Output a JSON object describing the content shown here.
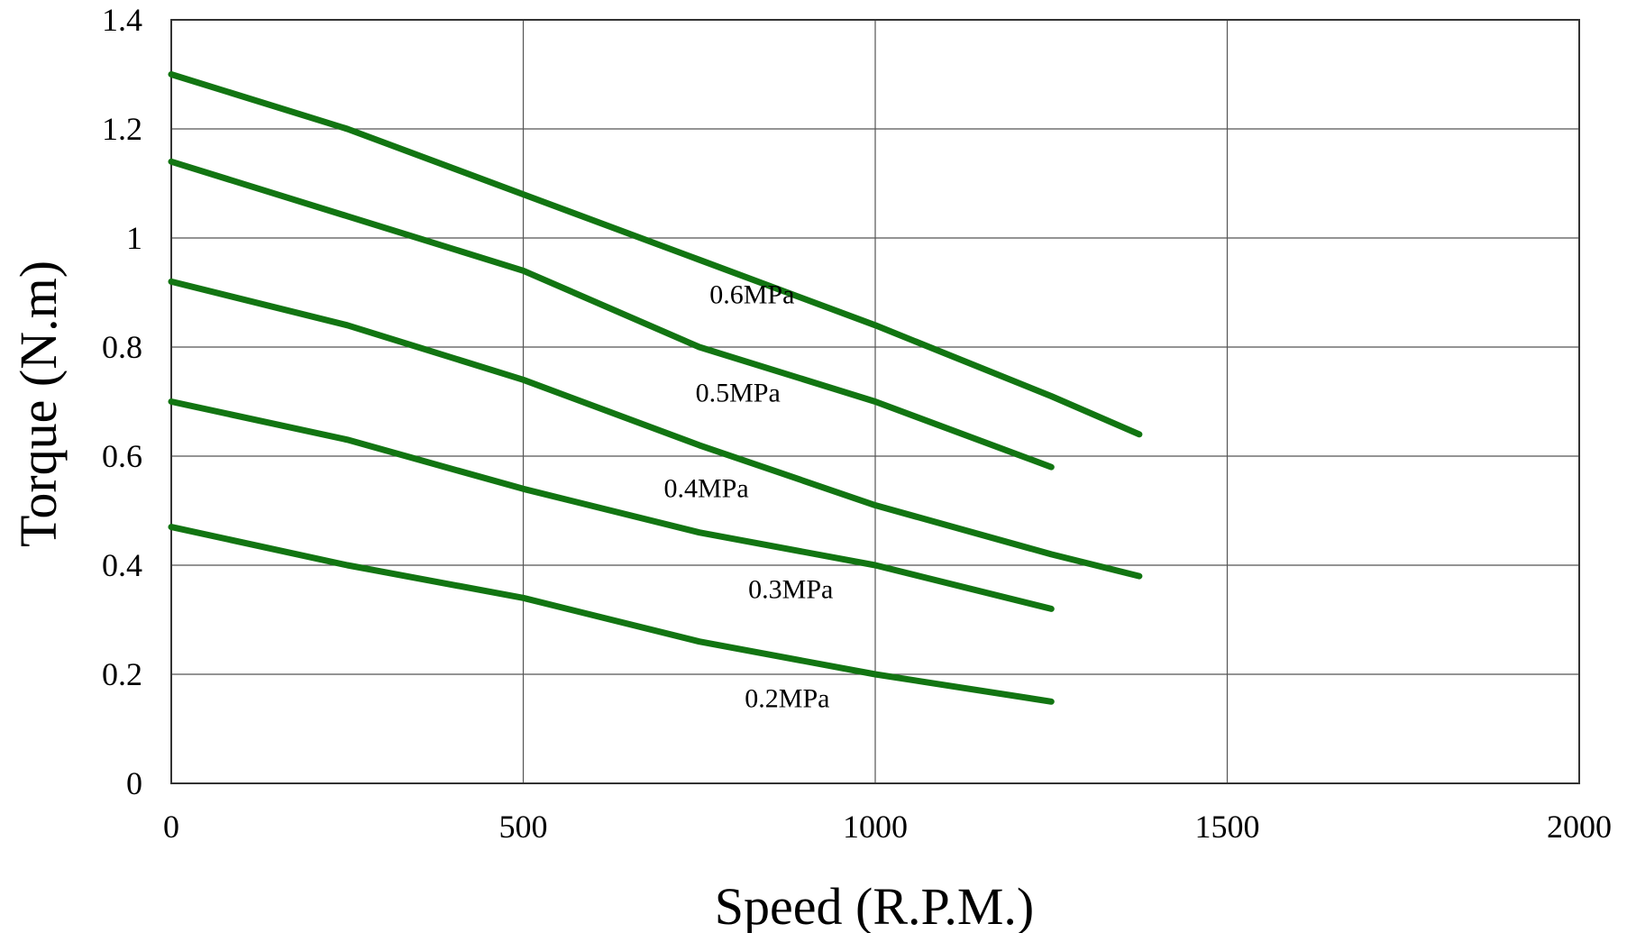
{
  "chart_data": {
    "type": "line",
    "xlabel": "Speed (R.P.M.)",
    "ylabel": "Torque (N.m)",
    "xlim": [
      0,
      2000
    ],
    "ylim": [
      0,
      1.4
    ],
    "xticks": [
      0,
      500,
      1000,
      1500,
      2000
    ],
    "yticks": [
      0,
      0.2,
      0.4,
      0.6,
      0.8,
      1,
      1.2,
      1.4
    ],
    "xtick_labels": [
      "0",
      "500",
      "1000",
      "1500",
      "2000"
    ],
    "ytick_labels": [
      "0",
      "0.2",
      "0.4",
      "0.6",
      "0.8",
      "1",
      "1.2",
      "1.4"
    ],
    "grid": true,
    "line_color": "#127512",
    "series": [
      {
        "name": "0.6MPa",
        "x": [
          0,
          250,
          500,
          750,
          1000,
          1250,
          1375
        ],
        "y": [
          1.3,
          1.2,
          1.08,
          0.96,
          0.84,
          0.71,
          0.64
        ],
        "label_at": [
          825,
          0.88
        ]
      },
      {
        "name": "0.5MPa",
        "x": [
          0,
          250,
          500,
          750,
          1000,
          1250
        ],
        "y": [
          1.14,
          1.04,
          0.94,
          0.8,
          0.7,
          0.58
        ],
        "label_at": [
          805,
          0.7
        ]
      },
      {
        "name": "0.4MPa",
        "x": [
          0,
          250,
          500,
          750,
          1000,
          1250,
          1375
        ],
        "y": [
          0.92,
          0.84,
          0.74,
          0.62,
          0.51,
          0.42,
          0.38
        ],
        "label_at": [
          760,
          0.525
        ]
      },
      {
        "name": "0.3MPa",
        "x": [
          0,
          250,
          500,
          750,
          1000,
          1250
        ],
        "y": [
          0.7,
          0.63,
          0.54,
          0.46,
          0.4,
          0.32
        ],
        "label_at": [
          880,
          0.34
        ]
      },
      {
        "name": "0.2MPa",
        "x": [
          0,
          250,
          500,
          750,
          1000,
          1250
        ],
        "y": [
          0.47,
          0.4,
          0.34,
          0.26,
          0.2,
          0.15
        ],
        "label_at": [
          875,
          0.14
        ]
      }
    ]
  }
}
